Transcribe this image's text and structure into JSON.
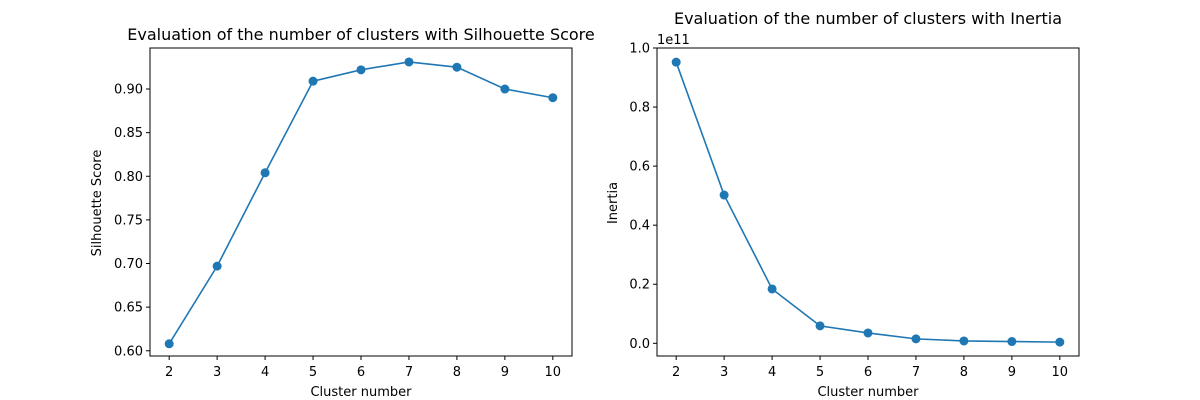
{
  "chart_data": [
    {
      "type": "line",
      "title": "Evaluation of the number of clusters with Silhouette Score",
      "xlabel": "Cluster number",
      "ylabel": "Silhouette Score",
      "x": [
        2,
        3,
        4,
        5,
        6,
        7,
        8,
        9,
        10
      ],
      "xticks": [
        2,
        3,
        4,
        5,
        6,
        7,
        8,
        9,
        10
      ],
      "xlim": [
        1.6,
        10.4
      ],
      "ylim": [
        0.594,
        0.947
      ],
      "yticks": [
        0.6,
        0.65,
        0.7,
        0.75,
        0.8,
        0.85,
        0.9
      ],
      "ytick_labels": [
        "0.60",
        "0.65",
        "0.70",
        "0.75",
        "0.80",
        "0.85",
        "0.90"
      ],
      "offset_label": "",
      "series": [
        {
          "values": [
            0.608,
            0.697,
            0.804,
            0.909,
            0.922,
            0.931,
            0.925,
            0.9,
            0.89
          ]
        }
      ],
      "color": "#1f77b4",
      "marker": "circle",
      "grid": false
    },
    {
      "type": "line",
      "title": "Evaluation of the number of clusters with Inertia",
      "xlabel": "Cluster number",
      "ylabel": "Inertia",
      "x": [
        2,
        3,
        4,
        5,
        6,
        7,
        8,
        9,
        10
      ],
      "xticks": [
        2,
        3,
        4,
        5,
        6,
        7,
        8,
        9,
        10
      ],
      "xlim": [
        1.6,
        10.4
      ],
      "ylim": [
        -0.043,
        1.0
      ],
      "yticks": [
        0.0,
        0.2,
        0.4,
        0.6,
        0.8,
        1.0
      ],
      "ytick_labels": [
        "0.0",
        "0.2",
        "0.4",
        "0.6",
        "0.8",
        "1.0"
      ],
      "offset_label": "1e11",
      "series": [
        {
          "values": [
            0.952,
            0.502,
            0.184,
            0.059,
            0.035,
            0.015,
            0.008,
            0.006,
            0.004
          ]
        }
      ],
      "color": "#1f77b4",
      "marker": "circle",
      "grid": false
    }
  ]
}
